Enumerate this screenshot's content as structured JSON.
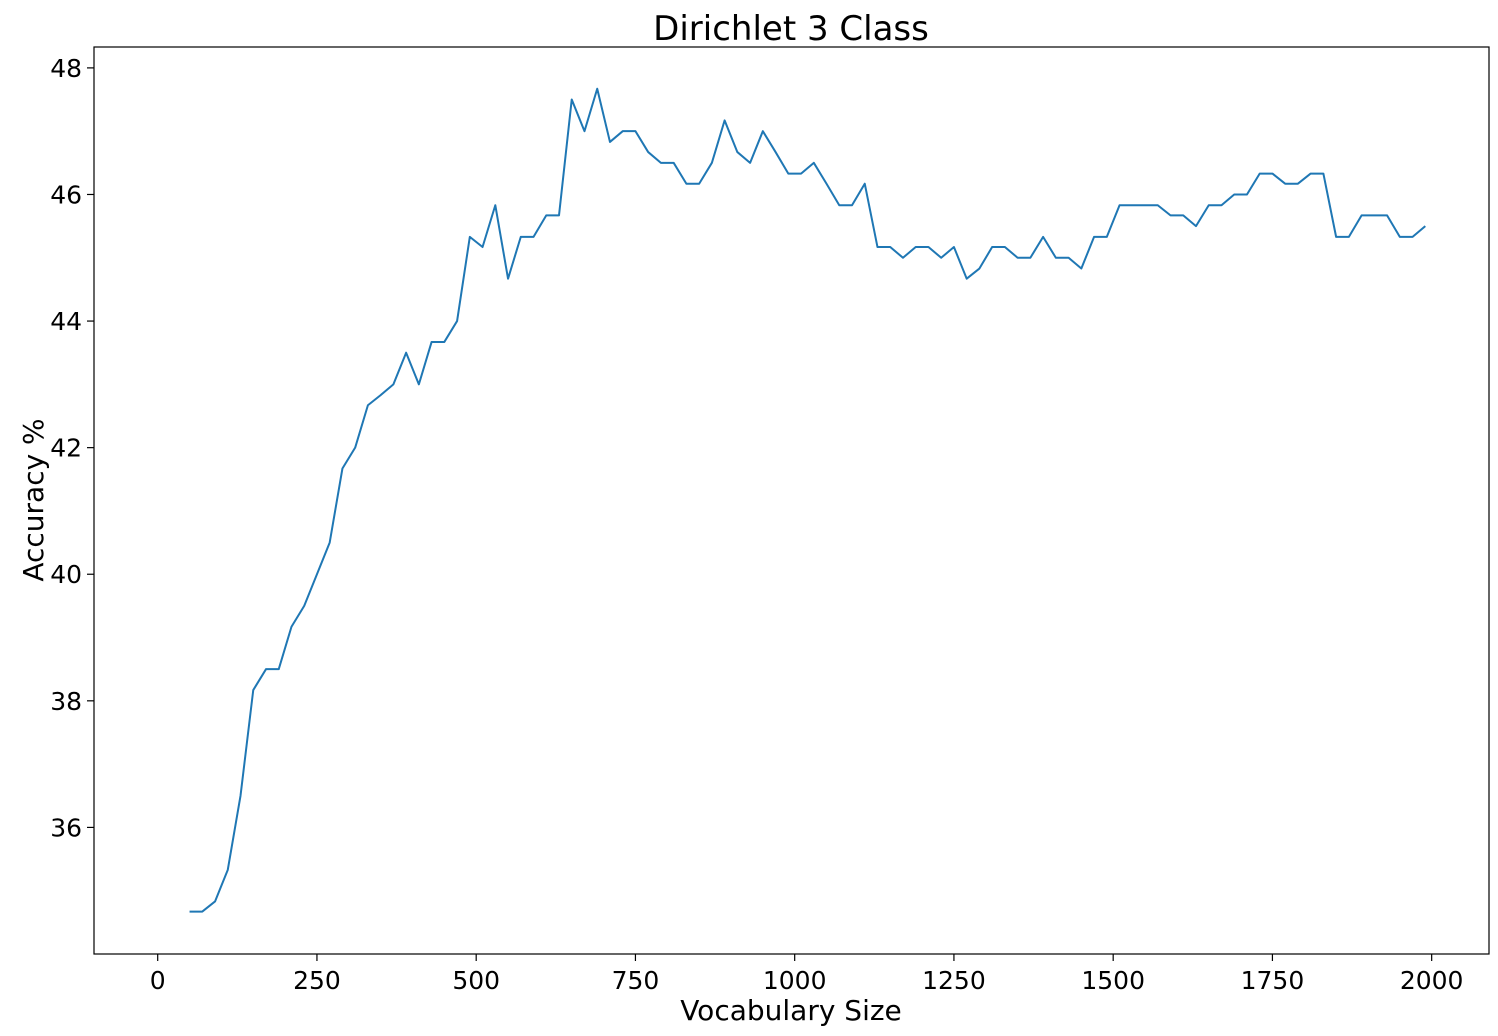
{
  "chart_data": {
    "type": "line",
    "title": "Dirichlet 3 Class",
    "xlabel": "Vocabulary Size",
    "ylabel": "Accuracy %",
    "xlim": [
      -100,
      2090
    ],
    "ylim": [
      34.0,
      48.33
    ],
    "xticks": [
      0,
      250,
      500,
      750,
      1000,
      1250,
      1500,
      1750,
      2000
    ],
    "yticks": [
      36,
      38,
      40,
      42,
      44,
      46,
      48
    ],
    "grid": false,
    "color": "#1f77b4",
    "series": [
      {
        "x": [
          50,
          70,
          90,
          110,
          130,
          150,
          170,
          190,
          210,
          230,
          250,
          270,
          290,
          310,
          330,
          350,
          370,
          390,
          410,
          430,
          450,
          470,
          490,
          510,
          530,
          550,
          570,
          590,
          610,
          630,
          650,
          670,
          690,
          710,
          730,
          750,
          770,
          790,
          810,
          830,
          850,
          870,
          890,
          910,
          930,
          950,
          970,
          990,
          1010,
          1030,
          1050,
          1070,
          1090,
          1110,
          1130,
          1150,
          1170,
          1190,
          1210,
          1230,
          1250,
          1270,
          1290,
          1310,
          1330,
          1350,
          1370,
          1390,
          1410,
          1430,
          1450,
          1470,
          1490,
          1510,
          1530,
          1550,
          1570,
          1590,
          1610,
          1630,
          1650,
          1670,
          1690,
          1710,
          1730,
          1750,
          1770,
          1790,
          1810,
          1830,
          1850,
          1870,
          1890,
          1910,
          1930,
          1950,
          1970,
          1990
        ],
        "values": [
          34.67,
          34.67,
          34.83,
          35.33,
          36.5,
          38.17,
          38.5,
          38.5,
          39.17,
          39.5,
          40.0,
          40.5,
          41.67,
          42.0,
          42.67,
          42.83,
          43.0,
          43.5,
          43.0,
          43.67,
          43.67,
          44.0,
          45.33,
          45.17,
          45.83,
          44.67,
          45.33,
          45.33,
          45.67,
          45.67,
          47.5,
          47.0,
          47.67,
          46.83,
          47.0,
          47.0,
          46.67,
          46.5,
          46.5,
          46.17,
          46.17,
          46.5,
          47.17,
          46.67,
          46.5,
          47.0,
          46.67,
          46.33,
          46.33,
          46.5,
          46.17,
          45.83,
          45.83,
          46.17,
          45.17,
          45.17,
          45.0,
          45.17,
          45.17,
          45.0,
          45.17,
          44.67,
          44.83,
          45.17,
          45.17,
          45.0,
          45.0,
          45.33,
          45.0,
          45.0,
          44.83,
          45.33,
          45.33,
          45.83,
          45.83,
          45.83,
          45.83,
          45.67,
          45.67,
          45.5,
          45.83,
          45.83,
          46.0,
          46.0,
          46.33,
          46.33,
          46.17,
          46.17,
          46.33,
          46.33,
          45.33,
          45.33,
          45.67,
          45.67,
          45.67,
          45.33,
          45.33,
          45.5
        ]
      }
    ]
  }
}
